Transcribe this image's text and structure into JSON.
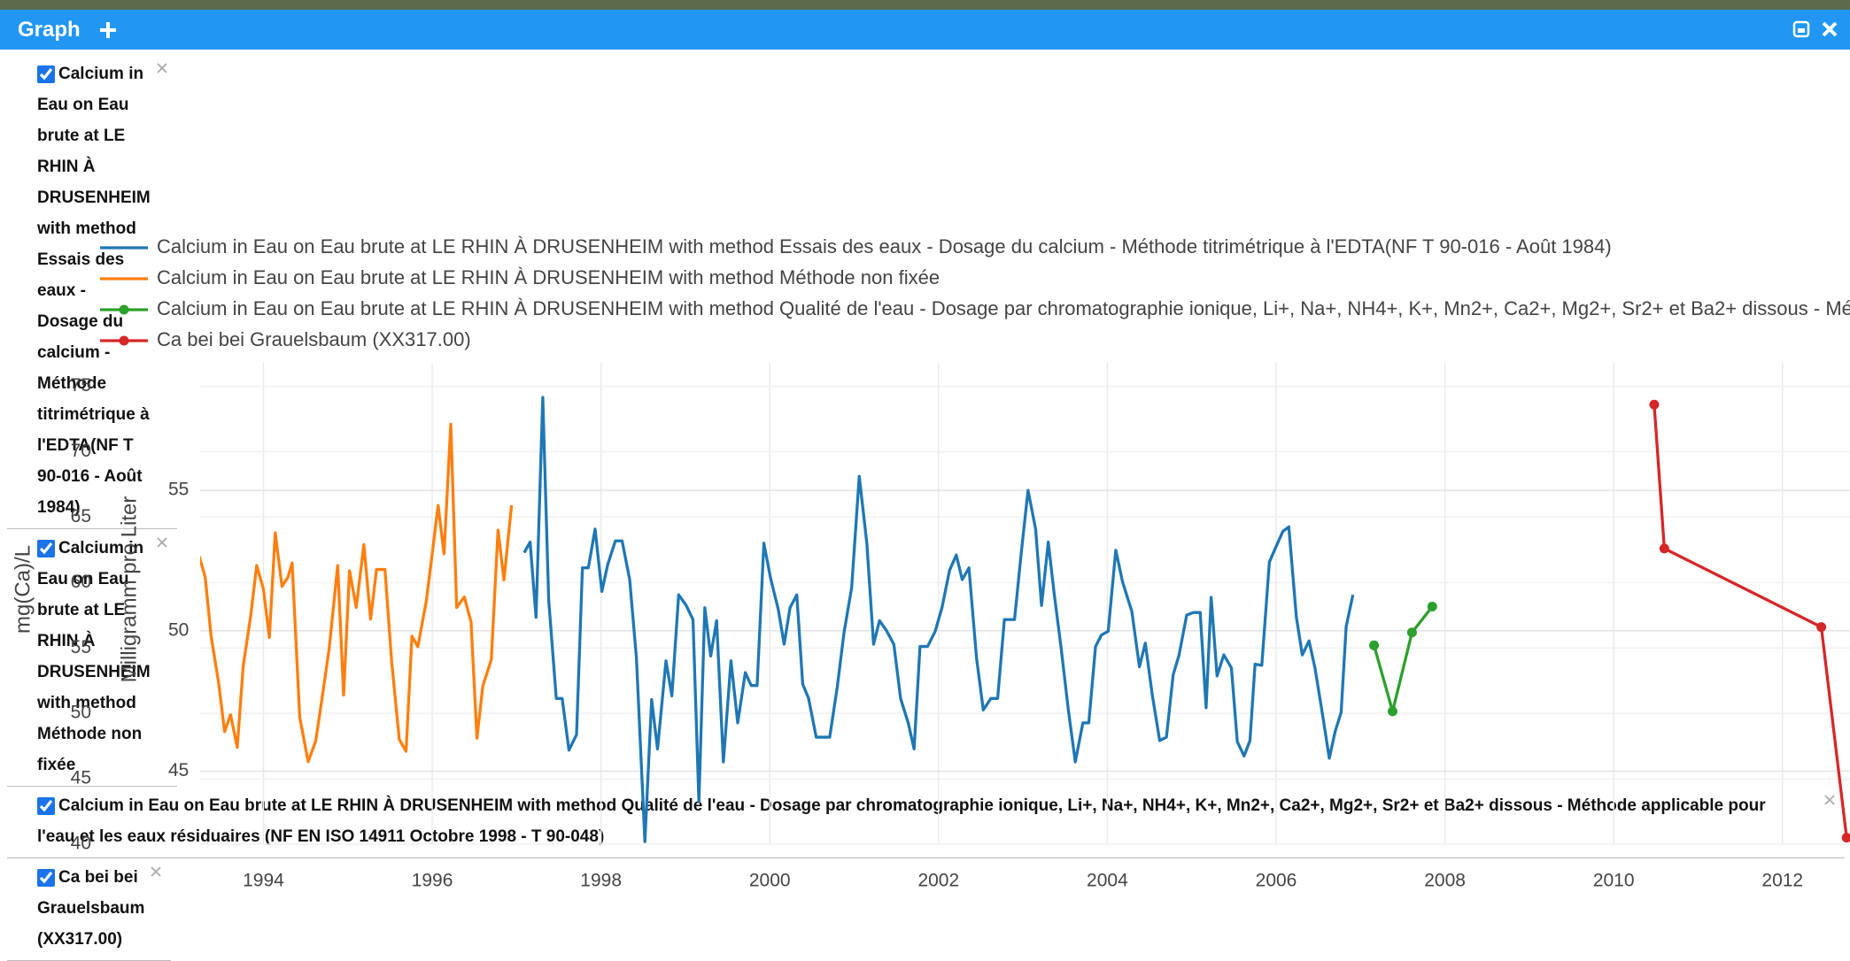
{
  "header": {
    "title": "Graph"
  },
  "chart_data": {
    "type": "line",
    "ylabel": "mg(Ca)/L",
    "y2label": "Milligramm pro Liter",
    "xlim": [
      1993.25,
      2012.8
    ],
    "xticks": [
      1994,
      1996,
      1998,
      2000,
      2002,
      2004,
      2006,
      2008,
      2010,
      2012
    ],
    "ylim": [
      40,
      75.85
    ],
    "yticks": [
      40,
      45,
      50,
      55,
      60,
      65,
      70,
      75
    ],
    "y2lim": [
      42.4,
      59.1
    ],
    "y2ticks": [
      45,
      50,
      55
    ],
    "grid": true,
    "series": [
      {
        "name": "Calcium in Eau on Eau brute at LE RHIN À DRUSENHEIM with method Essais des eaux - Dosage du calcium - Méthode titrimétrique à l'EDTA(NF T 90-016 - Août 1984)",
        "color": "#1f77b4",
        "axis": "y2",
        "markers": false,
        "x": [
          1997.09,
          1997.16,
          1997.23,
          1997.31,
          1997.38,
          1997.47,
          1997.54,
          1997.62,
          1997.71,
          1997.78,
          1997.85,
          1997.93,
          1998.01,
          1998.08,
          1998.17,
          1998.25,
          1998.34,
          1998.42,
          1998.52,
          1998.6,
          1998.67,
          1998.77,
          1998.84,
          1998.92,
          1999.01,
          1999.09,
          1999.16,
          1999.23,
          1999.3,
          1999.37,
          1999.45,
          1999.54,
          1999.62,
          1999.71,
          1999.78,
          1999.85,
          1999.93,
          2000.01,
          2000.1,
          2000.17,
          2000.24,
          2000.32,
          2000.39,
          2000.46,
          2000.55,
          2000.63,
          2000.71,
          2000.8,
          2000.88,
          2000.97,
          2001.06,
          2001.15,
          2001.23,
          2001.3,
          2001.38,
          2001.47,
          2001.55,
          2001.64,
          2001.71,
          2001.78,
          2001.87,
          2001.96,
          2002.04,
          2002.13,
          2002.21,
          2002.28,
          2002.36,
          2002.45,
          2002.53,
          2002.62,
          2002.7,
          2002.78,
          2002.9,
          2002.98,
          2003.06,
          2003.15,
          2003.22,
          2003.3,
          2003.37,
          2003.45,
          2003.54,
          2003.62,
          2003.71,
          2003.78,
          2003.86,
          2003.93,
          2004.01,
          2004.1,
          2004.18,
          2004.29,
          2004.38,
          2004.45,
          2004.53,
          2004.62,
          2004.7,
          2004.78,
          2004.85,
          2004.94,
          2005.02,
          2005.1,
          2005.17,
          2005.23,
          2005.3,
          2005.38,
          2005.47,
          2005.54,
          2005.62,
          2005.69,
          2005.75,
          2005.83,
          2005.92,
          2006.0,
          2006.08,
          2006.15,
          2006.24,
          2006.31,
          2006.39,
          2006.46,
          2006.55,
          2006.63,
          2006.7,
          2006.77,
          2006.83,
          2006.91
        ],
        "values": [
          52.78,
          53.16,
          50.48,
          58.31,
          51.11,
          47.59,
          47.59,
          45.75,
          46.3,
          52.24,
          52.24,
          53.62,
          51.4,
          52.36,
          53.2,
          53.2,
          51.82,
          49.02,
          42.49,
          47.55,
          45.79,
          48.93,
          47.68,
          51.28,
          50.9,
          50.4,
          43.91,
          50.82,
          49.1,
          50.36,
          45.33,
          48.93,
          46.72,
          48.51,
          48.05,
          48.05,
          53.12,
          51.86,
          50.77,
          49.52,
          50.82,
          51.28,
          48.1,
          47.59,
          46.21,
          46.21,
          46.21,
          48.01,
          49.94,
          51.53,
          55.5,
          53.12,
          49.52,
          50.36,
          50.02,
          49.52,
          47.59,
          46.72,
          45.79,
          49.44,
          49.44,
          49.98,
          50.82,
          52.15,
          52.7,
          51.82,
          52.24,
          49.02,
          47.18,
          47.59,
          47.59,
          50.4,
          50.4,
          52.78,
          55.0,
          53.62,
          50.9,
          53.16,
          51.32,
          49.44,
          47.13,
          45.33,
          46.72,
          46.72,
          49.44,
          49.85,
          49.98,
          52.87,
          51.74,
          50.69,
          48.72,
          49.56,
          47.76,
          46.09,
          46.21,
          48.43,
          49.14,
          50.56,
          50.65,
          50.65,
          47.26,
          51.19,
          48.39,
          49.14,
          48.68,
          46.05,
          45.54,
          46.09,
          48.81,
          48.77,
          52.45,
          53.0,
          53.54,
          53.7,
          50.48,
          49.14,
          49.64,
          48.68,
          47.01,
          45.46,
          46.42,
          47.09,
          50.15,
          51.28
        ]
      },
      {
        "name": "Calcium in Eau on Eau brute at LE RHIN À DRUSENHEIM with method Méthode non fixée",
        "color": "#ff7f0e",
        "axis": "y",
        "markers": false,
        "x": [
          1993.24,
          1993.31,
          1993.38,
          1993.47,
          1993.54,
          1993.61,
          1993.69,
          1993.76,
          1993.85,
          1993.92,
          1994.0,
          1994.07,
          1994.14,
          1994.22,
          1994.29,
          1994.34,
          1994.43,
          1994.53,
          1994.62,
          1994.7,
          1994.78,
          1994.88,
          1994.95,
          1995.02,
          1995.1,
          1995.19,
          1995.27,
          1995.34,
          1995.44,
          1995.52,
          1995.61,
          1995.69,
          1995.76,
          1995.83,
          1995.93,
          1996.0,
          1996.07,
          1996.14,
          1996.22,
          1996.29,
          1996.38,
          1996.46,
          1996.53,
          1996.6,
          1996.7,
          1996.78,
          1996.85,
          1996.94
        ],
        "values": [
          62.0,
          60.4,
          55.9,
          52.3,
          48.6,
          49.9,
          47.4,
          53.6,
          57.5,
          61.3,
          59.5,
          55.8,
          63.8,
          59.7,
          60.4,
          61.5,
          49.7,
          46.3,
          47.9,
          51.4,
          55.0,
          61.3,
          51.4,
          60.9,
          58.1,
          62.9,
          57.2,
          61.0,
          61.0,
          53.9,
          48.0,
          47.1,
          55.9,
          55.1,
          58.6,
          62.2,
          65.9,
          62.2,
          72.1,
          58.1,
          58.9,
          57.0,
          48.1,
          52.1,
          54.1,
          64.0,
          60.2,
          65.9
        ]
      },
      {
        "name": "Calcium in Eau on Eau brute at LE RHIN À DRUSENHEIM with method Qualité de l'eau - Dosage par chromatographie ionique, Li+, Na+, NH4+, K+, Mn2+, Ca2+, Mg2+, Sr2+ et Ba2+ dissous - Méthode applicable pour l'eau et les eaux résiduaires (NF EN ISO 14911 Octobre 1998 - T 90-048)",
        "color": "#2ca02c",
        "axis": "y2",
        "markers": true,
        "x": [
          2007.16,
          2007.38,
          2007.61,
          2007.85
        ],
        "values": [
          49.48,
          47.13,
          49.94,
          50.86
        ]
      },
      {
        "name": "Ca bei bei Grauelsbaum (XX317.00)",
        "color": "#d62728",
        "axis": "y",
        "markers": true,
        "x": [
          2010.48,
          2010.6,
          2012.46,
          2012.76
        ],
        "values": [
          73.6,
          62.6,
          56.6,
          40.5
        ]
      }
    ]
  }
}
